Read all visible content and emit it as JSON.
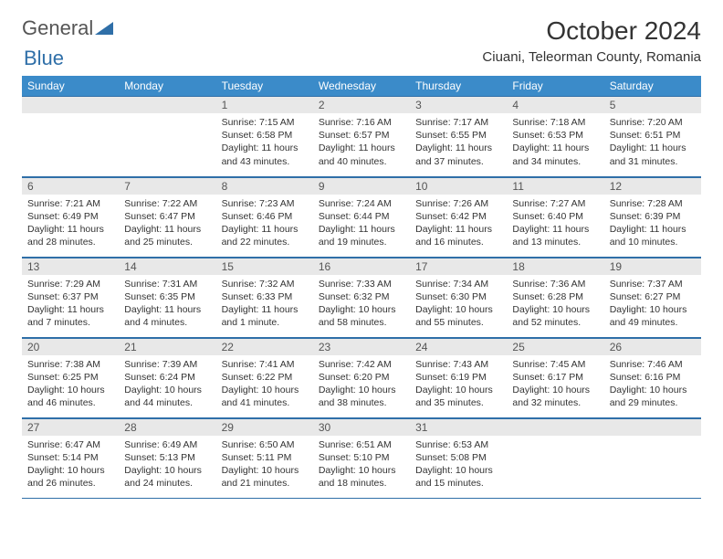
{
  "brand": {
    "part1": "General",
    "part2": "Blue"
  },
  "title": "October 2024",
  "location": "Ciuani, Teleorman County, Romania",
  "colors": {
    "header_bg": "#3b8bc9",
    "header_text": "#ffffff",
    "daynum_bg": "#e8e8e8",
    "border": "#2f6fa8",
    "brand_blue": "#2f6fa8"
  },
  "weekdays": [
    "Sunday",
    "Monday",
    "Tuesday",
    "Wednesday",
    "Thursday",
    "Friday",
    "Saturday"
  ],
  "weeks": [
    [
      null,
      null,
      {
        "n": "1",
        "sr": "Sunrise: 7:15 AM",
        "ss": "Sunset: 6:58 PM",
        "dl": "Daylight: 11 hours and 43 minutes."
      },
      {
        "n": "2",
        "sr": "Sunrise: 7:16 AM",
        "ss": "Sunset: 6:57 PM",
        "dl": "Daylight: 11 hours and 40 minutes."
      },
      {
        "n": "3",
        "sr": "Sunrise: 7:17 AM",
        "ss": "Sunset: 6:55 PM",
        "dl": "Daylight: 11 hours and 37 minutes."
      },
      {
        "n": "4",
        "sr": "Sunrise: 7:18 AM",
        "ss": "Sunset: 6:53 PM",
        "dl": "Daylight: 11 hours and 34 minutes."
      },
      {
        "n": "5",
        "sr": "Sunrise: 7:20 AM",
        "ss": "Sunset: 6:51 PM",
        "dl": "Daylight: 11 hours and 31 minutes."
      }
    ],
    [
      {
        "n": "6",
        "sr": "Sunrise: 7:21 AM",
        "ss": "Sunset: 6:49 PM",
        "dl": "Daylight: 11 hours and 28 minutes."
      },
      {
        "n": "7",
        "sr": "Sunrise: 7:22 AM",
        "ss": "Sunset: 6:47 PM",
        "dl": "Daylight: 11 hours and 25 minutes."
      },
      {
        "n": "8",
        "sr": "Sunrise: 7:23 AM",
        "ss": "Sunset: 6:46 PM",
        "dl": "Daylight: 11 hours and 22 minutes."
      },
      {
        "n": "9",
        "sr": "Sunrise: 7:24 AM",
        "ss": "Sunset: 6:44 PM",
        "dl": "Daylight: 11 hours and 19 minutes."
      },
      {
        "n": "10",
        "sr": "Sunrise: 7:26 AM",
        "ss": "Sunset: 6:42 PM",
        "dl": "Daylight: 11 hours and 16 minutes."
      },
      {
        "n": "11",
        "sr": "Sunrise: 7:27 AM",
        "ss": "Sunset: 6:40 PM",
        "dl": "Daylight: 11 hours and 13 minutes."
      },
      {
        "n": "12",
        "sr": "Sunrise: 7:28 AM",
        "ss": "Sunset: 6:39 PM",
        "dl": "Daylight: 11 hours and 10 minutes."
      }
    ],
    [
      {
        "n": "13",
        "sr": "Sunrise: 7:29 AM",
        "ss": "Sunset: 6:37 PM",
        "dl": "Daylight: 11 hours and 7 minutes."
      },
      {
        "n": "14",
        "sr": "Sunrise: 7:31 AM",
        "ss": "Sunset: 6:35 PM",
        "dl": "Daylight: 11 hours and 4 minutes."
      },
      {
        "n": "15",
        "sr": "Sunrise: 7:32 AM",
        "ss": "Sunset: 6:33 PM",
        "dl": "Daylight: 11 hours and 1 minute."
      },
      {
        "n": "16",
        "sr": "Sunrise: 7:33 AM",
        "ss": "Sunset: 6:32 PM",
        "dl": "Daylight: 10 hours and 58 minutes."
      },
      {
        "n": "17",
        "sr": "Sunrise: 7:34 AM",
        "ss": "Sunset: 6:30 PM",
        "dl": "Daylight: 10 hours and 55 minutes."
      },
      {
        "n": "18",
        "sr": "Sunrise: 7:36 AM",
        "ss": "Sunset: 6:28 PM",
        "dl": "Daylight: 10 hours and 52 minutes."
      },
      {
        "n": "19",
        "sr": "Sunrise: 7:37 AM",
        "ss": "Sunset: 6:27 PM",
        "dl": "Daylight: 10 hours and 49 minutes."
      }
    ],
    [
      {
        "n": "20",
        "sr": "Sunrise: 7:38 AM",
        "ss": "Sunset: 6:25 PM",
        "dl": "Daylight: 10 hours and 46 minutes."
      },
      {
        "n": "21",
        "sr": "Sunrise: 7:39 AM",
        "ss": "Sunset: 6:24 PM",
        "dl": "Daylight: 10 hours and 44 minutes."
      },
      {
        "n": "22",
        "sr": "Sunrise: 7:41 AM",
        "ss": "Sunset: 6:22 PM",
        "dl": "Daylight: 10 hours and 41 minutes."
      },
      {
        "n": "23",
        "sr": "Sunrise: 7:42 AM",
        "ss": "Sunset: 6:20 PM",
        "dl": "Daylight: 10 hours and 38 minutes."
      },
      {
        "n": "24",
        "sr": "Sunrise: 7:43 AM",
        "ss": "Sunset: 6:19 PM",
        "dl": "Daylight: 10 hours and 35 minutes."
      },
      {
        "n": "25",
        "sr": "Sunrise: 7:45 AM",
        "ss": "Sunset: 6:17 PM",
        "dl": "Daylight: 10 hours and 32 minutes."
      },
      {
        "n": "26",
        "sr": "Sunrise: 7:46 AM",
        "ss": "Sunset: 6:16 PM",
        "dl": "Daylight: 10 hours and 29 minutes."
      }
    ],
    [
      {
        "n": "27",
        "sr": "Sunrise: 6:47 AM",
        "ss": "Sunset: 5:14 PM",
        "dl": "Daylight: 10 hours and 26 minutes."
      },
      {
        "n": "28",
        "sr": "Sunrise: 6:49 AM",
        "ss": "Sunset: 5:13 PM",
        "dl": "Daylight: 10 hours and 24 minutes."
      },
      {
        "n": "29",
        "sr": "Sunrise: 6:50 AM",
        "ss": "Sunset: 5:11 PM",
        "dl": "Daylight: 10 hours and 21 minutes."
      },
      {
        "n": "30",
        "sr": "Sunrise: 6:51 AM",
        "ss": "Sunset: 5:10 PM",
        "dl": "Daylight: 10 hours and 18 minutes."
      },
      {
        "n": "31",
        "sr": "Sunrise: 6:53 AM",
        "ss": "Sunset: 5:08 PM",
        "dl": "Daylight: 10 hours and 15 minutes."
      },
      null,
      null
    ]
  ]
}
